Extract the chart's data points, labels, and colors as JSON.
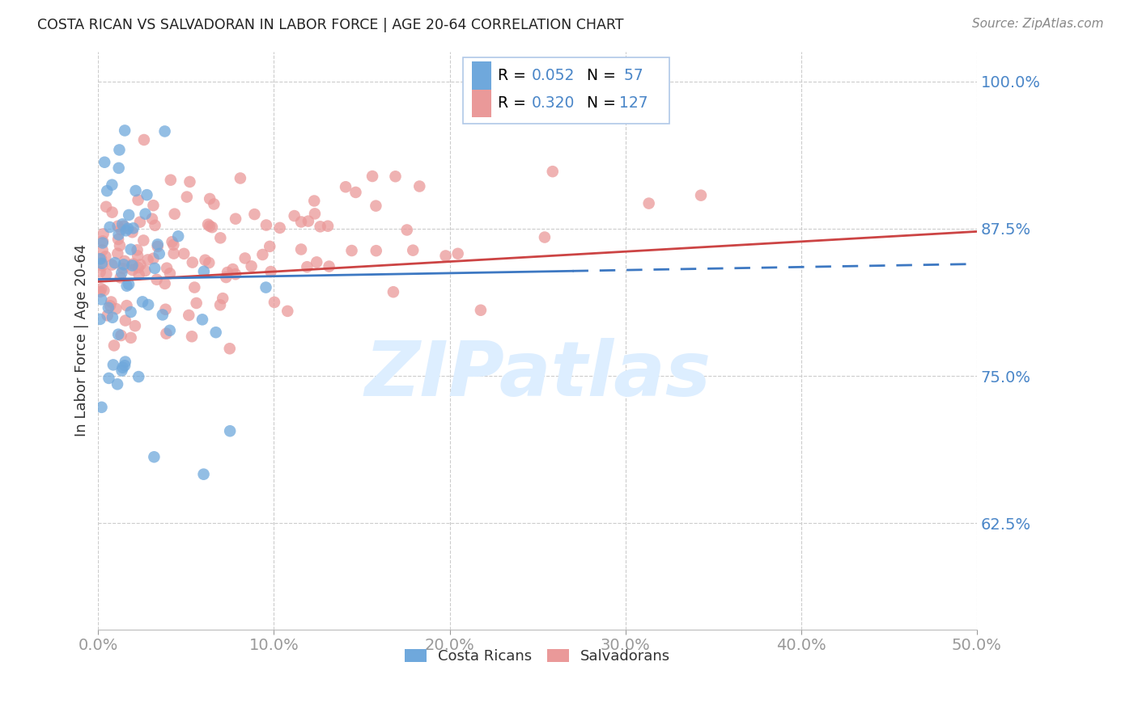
{
  "title": "COSTA RICAN VS SALVADORAN IN LABOR FORCE | AGE 20-64 CORRELATION CHART",
  "source_text": "Source: ZipAtlas.com",
  "ylabel": "In Labor Force | Age 20-64",
  "xlim": [
    0.0,
    0.5
  ],
  "ylim": [
    0.535,
    1.025
  ],
  "xticks": [
    0.0,
    0.1,
    0.2,
    0.3,
    0.4,
    0.5
  ],
  "yticks": [
    0.625,
    0.75,
    0.875,
    1.0
  ],
  "ytick_labels": [
    "62.5%",
    "75.0%",
    "87.5%",
    "100.0%"
  ],
  "xtick_labels": [
    "0.0%",
    "10.0%",
    "20.0%",
    "30.0%",
    "40.0%",
    "50.0%"
  ],
  "blue_R": 0.052,
  "blue_N": 57,
  "pink_R": 0.32,
  "pink_N": 127,
  "blue_color": "#6fa8dc",
  "pink_color": "#ea9999",
  "blue_line_color": "#3d78c2",
  "pink_line_color": "#cc4444",
  "axis_label_color": "#4a86c8",
  "title_color": "#222222",
  "grid_color": "#cccccc",
  "legend_border_color": "#b0c8e8",
  "legend_bg_color": "#f0f7ff",
  "watermark_text": "ZIPatlas",
  "watermark_color": "#ddeeff"
}
